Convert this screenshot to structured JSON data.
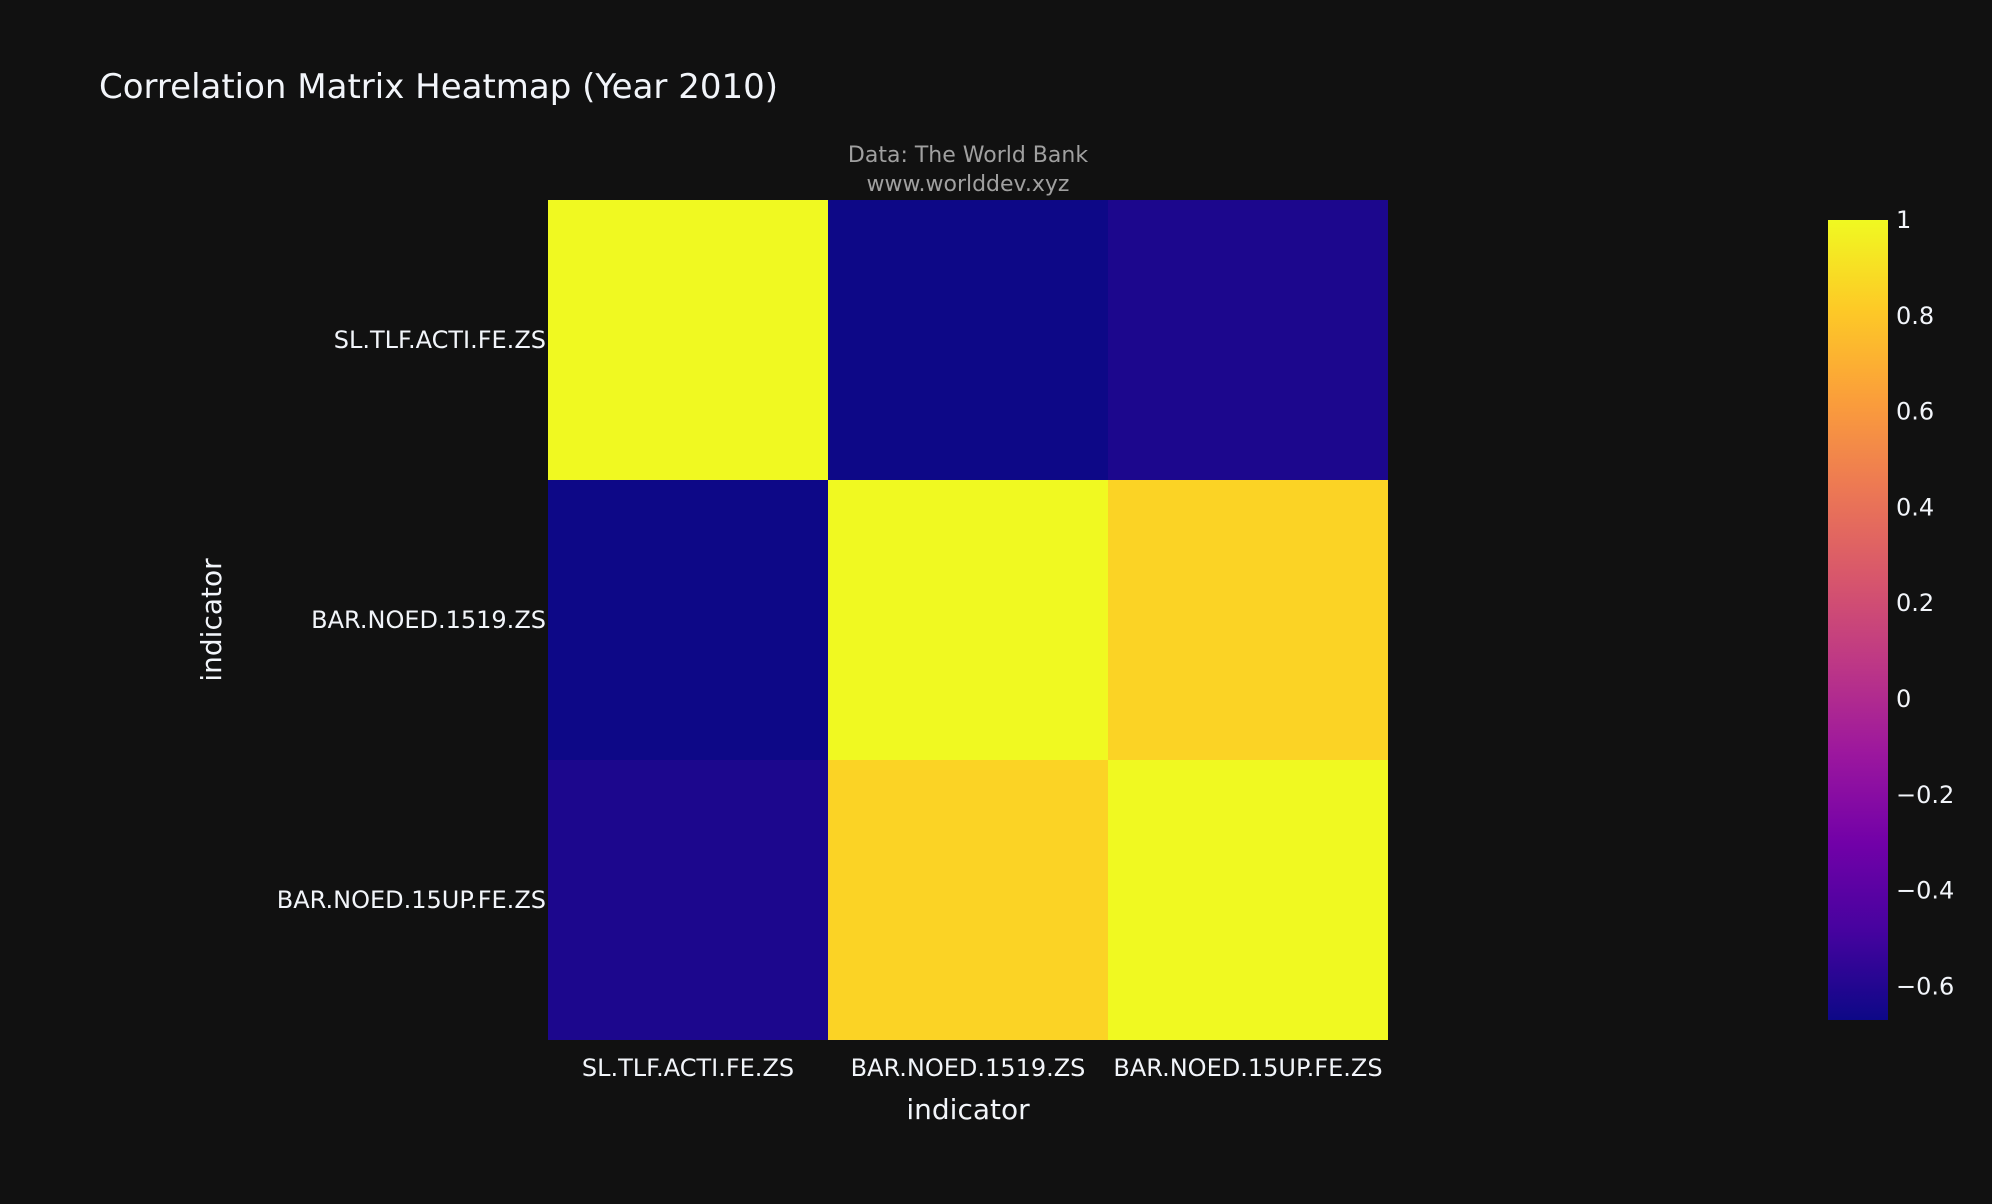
{
  "chart_data": {
    "type": "heatmap",
    "title": "Correlation Matrix Heatmap (Year 2010)",
    "annotation_lines": [
      "Data: The World Bank",
      "www.worlddev.xyz"
    ],
    "xlabel": "indicator",
    "ylabel": "indicator",
    "x": [
      "SL.TLF.ACTI.FE.ZS",
      "BAR.NOED.1519.ZS",
      "BAR.NOED.15UP.FE.ZS"
    ],
    "y": [
      "SL.TLF.ACTI.FE.ZS",
      "BAR.NOED.1519.ZS",
      "BAR.NOED.15UP.FE.ZS"
    ],
    "z": [
      [
        1.0,
        -0.67,
        -0.62
      ],
      [
        -0.67,
        1.0,
        0.85
      ],
      [
        -0.62,
        0.85,
        1.0
      ]
    ],
    "zrange": [
      -0.67,
      1.0
    ],
    "colorbar_ticks": [
      1,
      0.8,
      0.6,
      0.4,
      0.2,
      0,
      -0.2,
      -0.4,
      -0.6
    ],
    "colorbar_tick_labels": [
      "1",
      "0.8",
      "0.6",
      "0.4",
      "0.2",
      "0",
      "−0.2",
      "−0.4",
      "−0.6"
    ],
    "colorscale": [
      "#0d0887",
      "#46039f",
      "#7201a8",
      "#9c179e",
      "#bd3786",
      "#d8576b",
      "#ed7953",
      "#fb9f3a",
      "#fdca26",
      "#f0f921"
    ],
    "background_color": "#111111",
    "text_color": "#f2f5fa",
    "annotation_color": "#a0a0a0"
  }
}
